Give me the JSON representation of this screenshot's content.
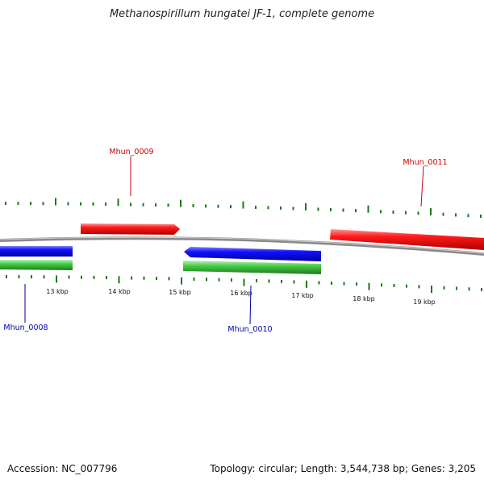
{
  "title": "Methanospirillum hungatei JF-1, complete genome",
  "footer": {
    "accession": "Accession: NC_007796",
    "summary": "Topology: circular; Length: 3,544,738 bp; Genes: 3,205"
  },
  "colors": {
    "forward_gene": "#e00000",
    "reverse_gene": "#0000e0",
    "rna_feature": "#3cc83c",
    "backbone": "#8a8a8a",
    "tick": "#1a7a1a",
    "forward_label": "#cc0000",
    "reverse_label": "#0000aa"
  },
  "tick_labels": [
    "13 kbp",
    "14 kbp",
    "15 kbp",
    "16 kbp",
    "17 kbp",
    "18 kbp",
    "19 kbp"
  ],
  "genes": [
    {
      "id": "Mhun_0008",
      "strand": "reverse"
    },
    {
      "id": "Mhun_0009",
      "strand": "forward"
    },
    {
      "id": "Mhun_0010",
      "strand": "reverse"
    },
    {
      "id": "Mhun_0011",
      "strand": "forward"
    }
  ]
}
